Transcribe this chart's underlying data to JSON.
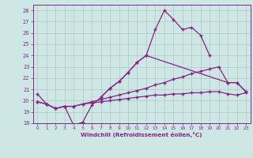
{
  "xlabel": "Windchill (Refroidissement éolien,°C)",
  "x": [
    0,
    1,
    2,
    3,
    4,
    5,
    6,
    7,
    8,
    9,
    10,
    11,
    12,
    13,
    14,
    15,
    16,
    17,
    18,
    19,
    20,
    21,
    22,
    23
  ],
  "line1": [
    20.6,
    19.7,
    19.3,
    19.5,
    17.8,
    18.1,
    19.6,
    20.3,
    21.1,
    21.7,
    22.5,
    23.4,
    24.0,
    26.3,
    28.0,
    27.2,
    26.3,
    26.5,
    25.8,
    24.0,
    null,
    null,
    null,
    null
  ],
  "line2": [
    null,
    null,
    null,
    null,
    null,
    null,
    null,
    20.3,
    21.1,
    21.7,
    22.5,
    23.4,
    24.0,
    null,
    null,
    null,
    null,
    null,
    null,
    null,
    null,
    21.6,
    21.6,
    20.8
  ],
  "line3": [
    19.9,
    19.7,
    19.3,
    19.5,
    19.5,
    19.7,
    19.9,
    20.1,
    20.3,
    20.5,
    20.7,
    20.9,
    21.1,
    21.4,
    21.6,
    21.9,
    22.1,
    22.4,
    22.6,
    22.8,
    23.0,
    21.6,
    21.6,
    20.8
  ],
  "line4": [
    19.9,
    19.7,
    19.3,
    19.5,
    19.5,
    19.7,
    19.8,
    19.9,
    20.0,
    20.1,
    20.2,
    20.3,
    20.4,
    20.5,
    20.5,
    20.6,
    20.6,
    20.7,
    20.7,
    20.8,
    20.8,
    20.6,
    20.5,
    20.7
  ],
  "bg_color": "#cde8e4",
  "grid_color": "#b0c8c4",
  "line_color": "#882288",
  "xlim": [
    -0.5,
    23.5
  ],
  "ylim": [
    18,
    28.5
  ],
  "yticks": [
    18,
    19,
    20,
    21,
    22,
    23,
    24,
    25,
    26,
    27,
    28
  ],
  "xticks": [
    0,
    1,
    2,
    3,
    4,
    5,
    6,
    7,
    8,
    9,
    10,
    11,
    12,
    13,
    14,
    15,
    16,
    17,
    18,
    19,
    20,
    21,
    22,
    23
  ]
}
